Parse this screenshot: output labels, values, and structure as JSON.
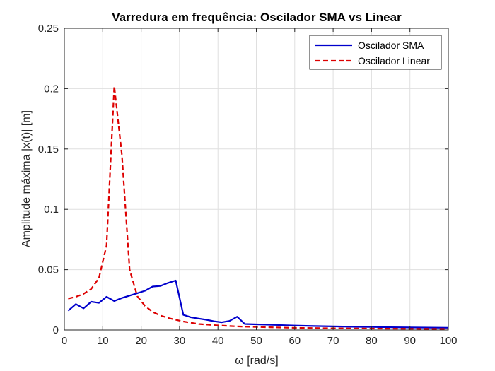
{
  "chart_data": {
    "type": "line",
    "title": "Varredura em frequência: Oscilador SMA vs Linear",
    "xlabel": "ω [rad/s]",
    "ylabel": "Amplitude máxima |x(t)| [m]",
    "xlim": [
      0,
      100
    ],
    "ylim": [
      0,
      0.25
    ],
    "x_ticks": [
      "0",
      "10",
      "20",
      "30",
      "40",
      "50",
      "60",
      "70",
      "80",
      "90",
      "100"
    ],
    "y_ticks": [
      "0",
      "0.05",
      "0.1",
      "0.15",
      "0.2",
      "0.25"
    ],
    "grid": true,
    "legend_position": "top-right",
    "series": [
      {
        "name": "Oscilador SMA",
        "color": "#0000cc",
        "style": "solid",
        "x": [
          1,
          3,
          5,
          7,
          9,
          11,
          13,
          15,
          17,
          19,
          21,
          23,
          25,
          27,
          29,
          31,
          33,
          35,
          37,
          39,
          41,
          43,
          45,
          47,
          50,
          55,
          60,
          65,
          70,
          75,
          80,
          85,
          90,
          95,
          100
        ],
        "y": [
          0.016,
          0.0215,
          0.018,
          0.0235,
          0.0225,
          0.0275,
          0.024,
          0.0265,
          0.0285,
          0.0305,
          0.0325,
          0.036,
          0.0365,
          0.039,
          0.041,
          0.0125,
          0.0105,
          0.0095,
          0.0085,
          0.0072,
          0.0064,
          0.0075,
          0.011,
          0.005,
          0.0047,
          0.0042,
          0.0037,
          0.0033,
          0.003,
          0.0027,
          0.0025,
          0.0023,
          0.0021,
          0.002,
          0.0019
        ]
      },
      {
        "name": "Oscilador Linear",
        "color": "#dd0000",
        "style": "dashed",
        "x": [
          1,
          3,
          5,
          7,
          9,
          11,
          13,
          15,
          17,
          19,
          21,
          23,
          25,
          27,
          29,
          31,
          35,
          40,
          45,
          50,
          60,
          70,
          80,
          90,
          100
        ],
        "y": [
          0.026,
          0.0275,
          0.03,
          0.034,
          0.043,
          0.07,
          0.202,
          0.145,
          0.05,
          0.028,
          0.02,
          0.015,
          0.012,
          0.01,
          0.0085,
          0.007,
          0.005,
          0.0038,
          0.003,
          0.0025,
          0.0018,
          0.0014,
          0.0012,
          0.001,
          0.0009
        ]
      }
    ]
  }
}
